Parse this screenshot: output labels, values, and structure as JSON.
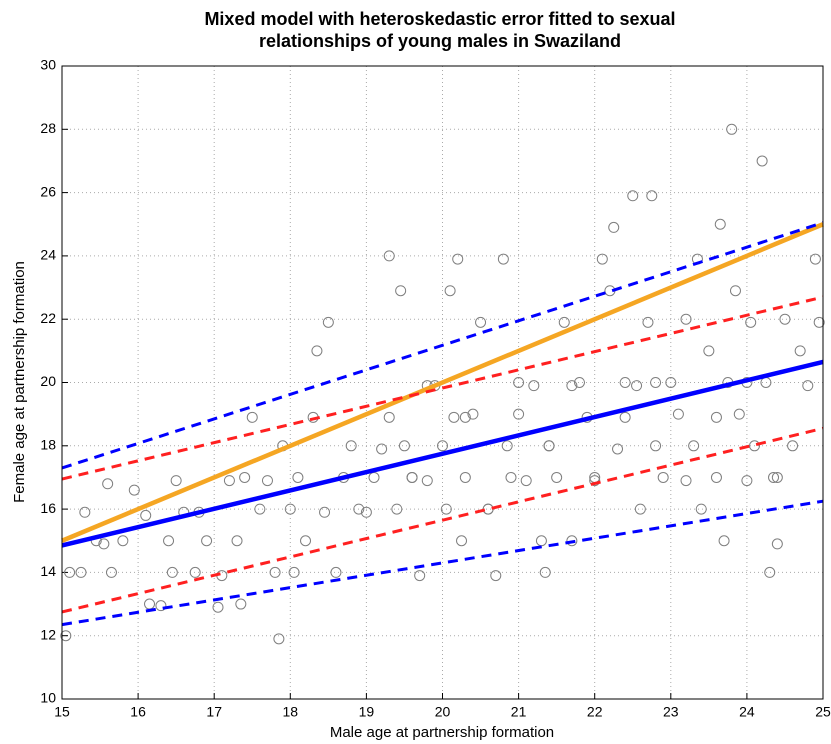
{
  "chart_data": {
    "type": "scatter",
    "title": [
      "Mixed model with heteroskedastic error fitted to sexual",
      "relationships of young males in Swaziland"
    ],
    "x_label": "Male age at partnership formation",
    "y_label": "Female age at partnership formation",
    "xlim": [
      15,
      25
    ],
    "ylim": [
      10,
      30
    ],
    "xticks": [
      15,
      16,
      17,
      18,
      19,
      20,
      21,
      22,
      23,
      24,
      25
    ],
    "yticks": [
      10,
      12,
      14,
      16,
      18,
      20,
      22,
      24,
      26,
      28,
      30
    ],
    "grid": true,
    "series": [
      {
        "type": "scatter",
        "color": "#7f7f7f",
        "x": [
          15.05,
          15.1,
          15.25,
          15.3,
          15.45,
          15.55,
          15.6,
          15.65,
          15.8,
          15.95,
          16.1,
          16.15,
          16.3,
          16.4,
          16.45,
          16.5,
          16.6,
          16.75,
          16.8,
          16.9,
          17.05,
          17.1,
          17.2,
          17.3,
          17.35,
          17.4,
          17.5,
          17.6,
          17.7,
          17.8,
          17.85,
          17.9,
          18.0,
          18.05,
          18.1,
          18.2,
          18.3,
          18.35,
          18.45,
          18.5,
          18.6,
          18.7,
          18.8,
          18.9,
          19.0,
          19.1,
          19.2,
          19.3,
          19.4,
          19.45,
          19.5,
          19.6,
          19.7,
          19.8,
          19.9,
          20.0,
          20.05,
          20.1,
          20.15,
          20.2,
          20.25,
          20.3,
          20.4,
          20.5,
          20.6,
          20.7,
          20.8,
          20.85,
          20.9,
          21.0,
          21.1,
          21.2,
          21.3,
          21.35,
          21.4,
          21.5,
          21.6,
          21.7,
          21.8,
          21.9,
          22.0,
          22.1,
          22.2,
          22.25,
          22.3,
          22.4,
          22.5,
          22.55,
          22.6,
          22.7,
          22.75,
          22.8,
          22.9,
          23.0,
          23.1,
          23.2,
          23.3,
          23.35,
          23.4,
          23.5,
          23.6,
          23.65,
          23.7,
          23.75,
          23.8,
          23.85,
          23.9,
          24.0,
          24.05,
          24.1,
          24.2,
          24.25,
          24.3,
          24.35,
          24.4,
          24.5,
          24.6,
          24.7,
          24.8,
          24.9,
          24.95,
          19.3,
          19.6,
          19.8,
          20.3,
          20.6,
          21.0,
          21.4,
          21.7,
          22.0,
          22.4,
          22.8,
          23.2,
          23.6,
          24.0,
          24.4
        ],
        "values": [
          12,
          14,
          14,
          15.9,
          15,
          14.9,
          16.8,
          14,
          15,
          16.6,
          15.8,
          13,
          12.95,
          15,
          14,
          16.9,
          15.9,
          14,
          15.9,
          15,
          12.9,
          13.9,
          16.9,
          15,
          13,
          17,
          18.9,
          16,
          16.9,
          14,
          11.9,
          18,
          16,
          14,
          17,
          15,
          18.9,
          21,
          15.9,
          21.9,
          14,
          17,
          18,
          16,
          15.9,
          17,
          17.9,
          24,
          16,
          22.9,
          18,
          17,
          13.9,
          16.9,
          19.9,
          18,
          16,
          22.9,
          18.9,
          23.9,
          15,
          17,
          19,
          21.9,
          16,
          13.9,
          23.9,
          18,
          17,
          19,
          16.9,
          19.9,
          15,
          14,
          18,
          17,
          21.9,
          15,
          20,
          18.9,
          16.9,
          23.9,
          22.9,
          24.9,
          17.9,
          20,
          25.9,
          19.9,
          16,
          21.9,
          25.9,
          18,
          17,
          20,
          19,
          22,
          18,
          23.9,
          16,
          21,
          17,
          25,
          15,
          20,
          28,
          22.9,
          19,
          16.9,
          21.9,
          18,
          27,
          20,
          14,
          17,
          14.9,
          22,
          18,
          21,
          19.9,
          23.9,
          21.9,
          18.9,
          17,
          19.9,
          18.9,
          16,
          20,
          18,
          19.9,
          17,
          18.9,
          20,
          16.9,
          18.9,
          20,
          17
        ]
      },
      {
        "type": "line",
        "color": "#f5a623",
        "dashed": false,
        "x": [
          15,
          25
        ],
        "values": [
          15,
          25
        ]
      },
      {
        "type": "line",
        "color": "#0000ff",
        "dashed": false,
        "x": [
          15,
          25
        ],
        "values": [
          14.85,
          20.65
        ]
      },
      {
        "type": "line",
        "color": "#0000ff",
        "dashed": true,
        "x": [
          15,
          25
        ],
        "values": [
          17.3,
          25.05
        ]
      },
      {
        "type": "line",
        "color": "#0000ff",
        "dashed": true,
        "x": [
          15,
          25
        ],
        "values": [
          12.35,
          16.25
        ]
      },
      {
        "type": "line",
        "color": "#ff2020",
        "dashed": true,
        "x": [
          15,
          25
        ],
        "values": [
          16.95,
          22.7
        ]
      },
      {
        "type": "line",
        "color": "#ff2020",
        "dashed": true,
        "x": [
          15,
          25
        ],
        "values": [
          12.75,
          18.55
        ]
      }
    ]
  }
}
